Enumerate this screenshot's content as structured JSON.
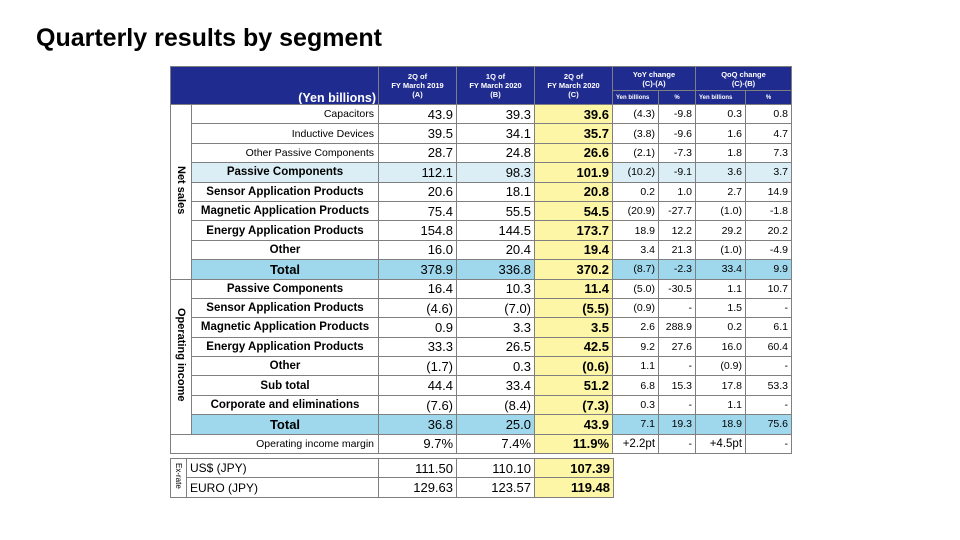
{
  "title": "Quarterly results by segment",
  "header": {
    "unit": "(Yen billions)",
    "col_a": [
      "2Q of",
      "FY March 2019",
      "(A)"
    ],
    "col_b": [
      "1Q of",
      "FY March 2020",
      "(B)"
    ],
    "col_c": [
      "2Q of",
      "FY March 2020",
      "(C)"
    ],
    "yoy": [
      "YoY change",
      "(C)-(A)"
    ],
    "qoq": [
      "QoQ change",
      "(C)-(B)"
    ],
    "sub_yen": "Yen billions",
    "sub_pct": "%"
  },
  "net_sales": {
    "label": "Net sales",
    "rows": [
      {
        "label": "Capacitors",
        "a": "43.9",
        "b": "39.3",
        "c": "39.6",
        "yoy": "(4.3)",
        "yoy_pct": "-9.8",
        "qoq": "0.3",
        "qoq_pct": "0.8"
      },
      {
        "label": "Inductive Devices",
        "a": "39.5",
        "b": "34.1",
        "c": "35.7",
        "yoy": "(3.8)",
        "yoy_pct": "-9.6",
        "qoq": "1.6",
        "qoq_pct": "4.7"
      },
      {
        "label": "Other Passive Components",
        "a": "28.7",
        "b": "24.8",
        "c": "26.6",
        "yoy": "(2.1)",
        "yoy_pct": "-7.3",
        "qoq": "1.8",
        "qoq_pct": "7.3"
      },
      {
        "label": "Passive Components",
        "a": "112.1",
        "b": "98.3",
        "c": "101.9",
        "yoy": "(10.2)",
        "yoy_pct": "-9.1",
        "qoq": "3.6",
        "qoq_pct": "3.7"
      },
      {
        "label": "Sensor Application Products",
        "a": "20.6",
        "b": "18.1",
        "c": "20.8",
        "yoy": "0.2",
        "yoy_pct": "1.0",
        "qoq": "2.7",
        "qoq_pct": "14.9"
      },
      {
        "label": "Magnetic Application Products",
        "a": "75.4",
        "b": "55.5",
        "c": "54.5",
        "yoy": "(20.9)",
        "yoy_pct": "-27.7",
        "qoq": "(1.0)",
        "qoq_pct": "-1.8"
      },
      {
        "label": "Energy Application Products",
        "a": "154.8",
        "b": "144.5",
        "c": "173.7",
        "yoy": "18.9",
        "yoy_pct": "12.2",
        "qoq": "29.2",
        "qoq_pct": "20.2"
      },
      {
        "label": "Other",
        "a": "16.0",
        "b": "20.4",
        "c": "19.4",
        "yoy": "3.4",
        "yoy_pct": "21.3",
        "qoq": "(1.0)",
        "qoq_pct": "-4.9"
      },
      {
        "label": "Total",
        "a": "378.9",
        "b": "336.8",
        "c": "370.2",
        "yoy": "(8.7)",
        "yoy_pct": "-2.3",
        "qoq": "33.4",
        "qoq_pct": "9.9"
      }
    ]
  },
  "operating_income": {
    "label": "Operating income",
    "rows": [
      {
        "label": "Passive Components",
        "a": "16.4",
        "b": "10.3",
        "c": "11.4",
        "yoy": "(5.0)",
        "yoy_pct": "-30.5",
        "qoq": "1.1",
        "qoq_pct": "10.7"
      },
      {
        "label": "Sensor Application Products",
        "a": "(4.6)",
        "b": "(7.0)",
        "c": "(5.5)",
        "yoy": "(0.9)",
        "yoy_pct": "-",
        "qoq": "1.5",
        "qoq_pct": "-"
      },
      {
        "label": "Magnetic Application Products",
        "a": "0.9",
        "b": "3.3",
        "c": "3.5",
        "yoy": "2.6",
        "yoy_pct": "288.9",
        "qoq": "0.2",
        "qoq_pct": "6.1"
      },
      {
        "label": "Energy Application Products",
        "a": "33.3",
        "b": "26.5",
        "c": "42.5",
        "yoy": "9.2",
        "yoy_pct": "27.6",
        "qoq": "16.0",
        "qoq_pct": "60.4"
      },
      {
        "label": "Other",
        "a": "(1.7)",
        "b": "0.3",
        "c": "(0.6)",
        "yoy": "1.1",
        "yoy_pct": "-",
        "qoq": "(0.9)",
        "qoq_pct": "-"
      },
      {
        "label": "Sub total",
        "a": "44.4",
        "b": "33.4",
        "c": "51.2",
        "yoy": "6.8",
        "yoy_pct": "15.3",
        "qoq": "17.8",
        "qoq_pct": "53.3"
      },
      {
        "label": "Corporate and eliminations",
        "a": "(7.6)",
        "b": "(8.4)",
        "c": "(7.3)",
        "yoy": "0.3",
        "yoy_pct": "-",
        "qoq": "1.1",
        "qoq_pct": "-"
      },
      {
        "label": "Total",
        "a": "36.8",
        "b": "25.0",
        "c": "43.9",
        "yoy": "7.1",
        "yoy_pct": "19.3",
        "qoq": "18.9",
        "qoq_pct": "75.6"
      }
    ]
  },
  "margin": {
    "label": "Operating income margin",
    "a": "9.7%",
    "b": "7.4%",
    "c": "11.9%",
    "yoy": "+2.2pt",
    "yoy_pct": "-",
    "qoq": "+4.5pt",
    "qoq_pct": "-"
  },
  "ex_rate": {
    "label": "Ex-rate",
    "rows": [
      {
        "label": "US$ (JPY)",
        "a": "111.50",
        "b": "110.10",
        "c": "107.39"
      },
      {
        "label": "EURO (JPY)",
        "a": "129.63",
        "b": "123.57",
        "c": "119.48"
      }
    ]
  },
  "colors": {
    "header": "#1f2b8f",
    "highlight": "#fdf6a6",
    "passive": "#dbeef6",
    "total": "#9fd7ec"
  }
}
